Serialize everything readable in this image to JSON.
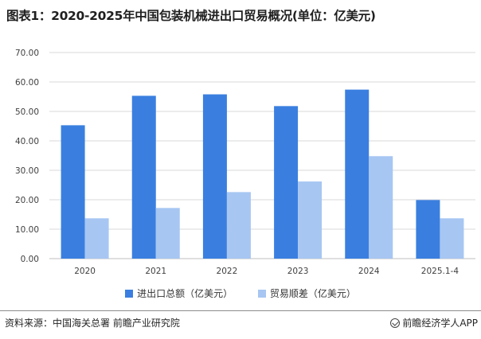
{
  "title": "图表1：2020-2025年中国包装机械进出口贸易概况(单位：亿美元)",
  "colors": {
    "series1": "#3a7fe0",
    "series2": "#a7c6f2",
    "grid": "#d9d9d9",
    "axis": "#bfbfbf"
  },
  "chart_data": {
    "type": "bar",
    "categories": [
      "2020",
      "2021",
      "2022",
      "2023",
      "2024",
      "2025.1-4"
    ],
    "series": [
      {
        "name": "进出口总额（亿美元）",
        "values": [
          45.3,
          55.3,
          55.8,
          51.8,
          57.4,
          19.9
        ]
      },
      {
        "name": "贸易顺差（亿美元）",
        "values": [
          13.7,
          17.2,
          22.6,
          26.2,
          34.8,
          13.7
        ]
      }
    ],
    "ylim": [
      0,
      70
    ],
    "yticks": [
      "0.00",
      "10.00",
      "20.00",
      "30.00",
      "40.00",
      "50.00",
      "60.00",
      "70.00"
    ],
    "grid": true,
    "legend_position": "bottom",
    "xlabel": "",
    "ylabel": ""
  },
  "footer": {
    "source": "资料来源：中国海关总署 前瞻产业研究院",
    "brand": "前瞻经济学人APP"
  }
}
